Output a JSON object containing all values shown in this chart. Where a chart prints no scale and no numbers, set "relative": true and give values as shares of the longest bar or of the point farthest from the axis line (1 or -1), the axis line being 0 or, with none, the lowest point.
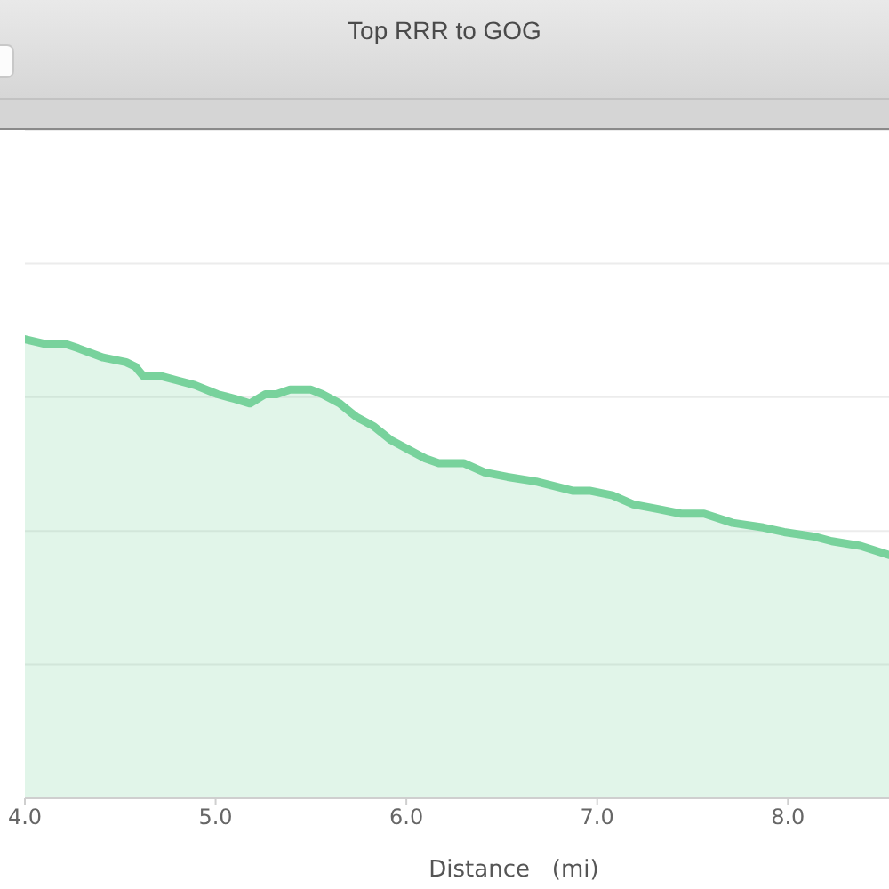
{
  "chart_data": {
    "type": "area",
    "title": "Top RRR to GOG",
    "xlabel": "Distance   (mi)",
    "relative": true,
    "x": [
      4.0,
      4.1,
      4.21,
      4.28,
      4.41,
      4.53,
      4.58,
      4.62,
      4.71,
      4.8,
      4.89,
      5.01,
      5.1,
      5.18,
      5.26,
      5.32,
      5.39,
      5.46,
      5.5,
      5.56,
      5.65,
      5.71,
      5.74,
      5.83,
      5.92,
      6.01,
      6.1,
      6.17,
      6.3,
      6.41,
      6.53,
      6.68,
      6.87,
      6.96,
      7.08,
      7.19,
      7.32,
      7.44,
      7.56,
      7.71,
      7.87,
      7.98,
      8.14,
      8.23,
      8.38,
      8.53
    ],
    "series": [
      {
        "color": "#78d29c",
        "values": [
          1.0,
          0.99,
          0.99,
          0.98,
          0.96,
          0.95,
          0.94,
          0.92,
          0.92,
          0.91,
          0.9,
          0.88,
          0.87,
          0.86,
          0.88,
          0.88,
          0.89,
          0.89,
          0.89,
          0.88,
          0.86,
          0.84,
          0.83,
          0.81,
          0.78,
          0.76,
          0.74,
          0.73,
          0.73,
          0.71,
          0.7,
          0.69,
          0.67,
          0.67,
          0.66,
          0.64,
          0.63,
          0.62,
          0.62,
          0.6,
          0.59,
          0.58,
          0.57,
          0.56,
          0.55,
          0.53
        ]
      }
    ],
    "xlim": [
      4.0,
      8.53
    ],
    "xticks": [
      {
        "value": 4,
        "label": "4.0"
      },
      {
        "value": 5,
        "label": "5.0"
      },
      {
        "value": 6,
        "label": "6.0"
      },
      {
        "value": 7,
        "label": "7.0"
      },
      {
        "value": 8,
        "label": "8.0"
      }
    ],
    "grid": "y",
    "tick_labels": "x"
  }
}
